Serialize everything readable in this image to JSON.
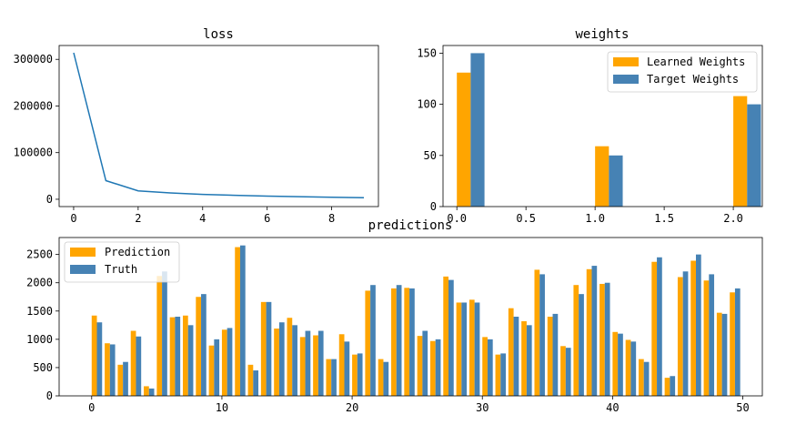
{
  "chart_data": [
    {
      "type": "line",
      "title": "loss",
      "x": [
        0,
        1,
        2,
        3,
        4,
        5,
        6,
        7,
        8,
        9
      ],
      "y": [
        314000,
        40000,
        18000,
        13500,
        10500,
        8500,
        6800,
        5500,
        4300,
        3400
      ],
      "xlim": [
        -0.45,
        9.45
      ],
      "ylim": [
        -15700,
        329700
      ],
      "xticks": [
        0,
        2,
        4,
        6,
        8
      ],
      "yticks": [
        0,
        100000,
        200000,
        300000
      ],
      "color": "#1f77b4"
    },
    {
      "type": "bar",
      "title": "weights",
      "x": [
        0,
        1,
        2
      ],
      "series": [
        {
          "name": "Learned Weights",
          "values": [
            131,
            59,
            108
          ],
          "color": "#ffa500"
        },
        {
          "name": "Target Weights",
          "values": [
            150,
            50,
            100
          ],
          "color": "#4682b4"
        }
      ],
      "xlim": [
        -0.1,
        2.21
      ],
      "ylim": [
        0,
        157.5
      ],
      "xticks": [
        0.0,
        0.5,
        1.0,
        1.5,
        2.0
      ],
      "yticks": [
        0,
        50,
        100,
        150
      ],
      "legend": "top-right"
    },
    {
      "type": "bar",
      "title": "predictions",
      "x": [
        0,
        1,
        2,
        3,
        4,
        5,
        6,
        7,
        8,
        9,
        10,
        11,
        12,
        13,
        14,
        15,
        16,
        17,
        18,
        19,
        20,
        21,
        22,
        23,
        24,
        25,
        26,
        27,
        28,
        29,
        30,
        31,
        32,
        33,
        34,
        35,
        36,
        37,
        38,
        39,
        40,
        41,
        42,
        43,
        44,
        45,
        46,
        47,
        48,
        49
      ],
      "series": [
        {
          "name": "Prediction",
          "color": "#ffa500",
          "values": [
            1420,
            930,
            550,
            1150,
            170,
            2120,
            1390,
            1420,
            1750,
            890,
            1170,
            2630,
            550,
            1660,
            1190,
            1380,
            1040,
            1070,
            650,
            1090,
            730,
            1860,
            650,
            1900,
            1910,
            1060,
            970,
            2110,
            1650,
            1700,
            1040,
            730,
            1550,
            1320,
            2230,
            1400,
            880,
            1960,
            2240,
            1980,
            1130,
            990,
            650,
            2370,
            320,
            2100,
            2390,
            2040,
            1470,
            1830
          ]
        },
        {
          "name": "Truth",
          "color": "#4682b4",
          "values": [
            1300,
            910,
            600,
            1050,
            130,
            2200,
            1400,
            1250,
            1800,
            1000,
            1200,
            2660,
            450,
            1660,
            1300,
            1250,
            1150,
            1150,
            650,
            960,
            750,
            1960,
            600,
            1960,
            1900,
            1150,
            1000,
            2050,
            1650,
            1650,
            1000,
            750,
            1400,
            1250,
            2150,
            1450,
            850,
            1800,
            2300,
            2000,
            1100,
            960,
            600,
            2450,
            350,
            2200,
            2500,
            2150,
            1450,
            1900
          ]
        }
      ],
      "xlim": [
        -2.5,
        51.5
      ],
      "ylim": [
        0,
        2800
      ],
      "xticks": [
        0,
        10,
        20,
        30,
        40,
        50
      ],
      "yticks": [
        0,
        500,
        1000,
        1500,
        2000,
        2500
      ],
      "legend": "top-left"
    }
  ]
}
